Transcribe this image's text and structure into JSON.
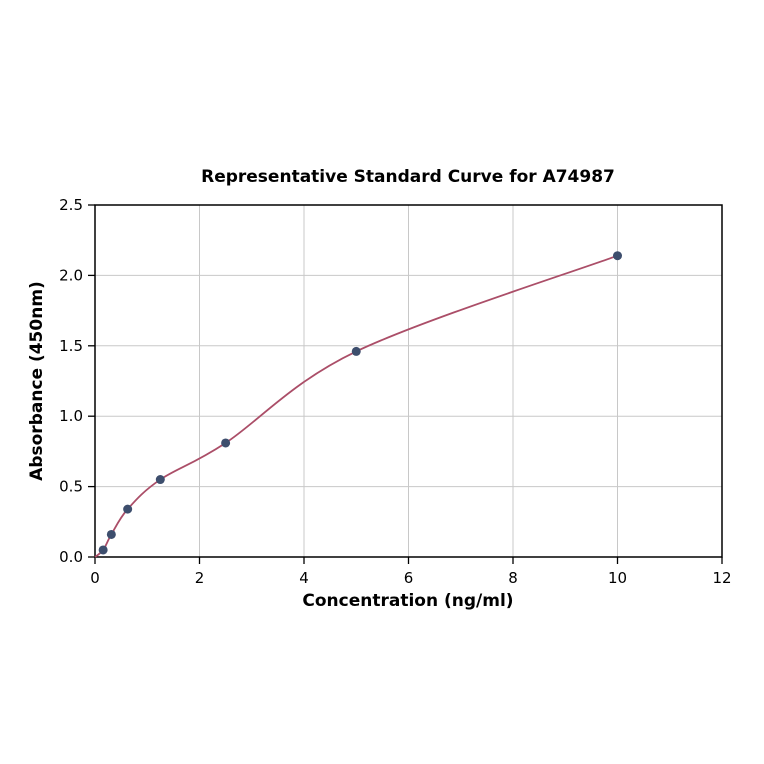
{
  "chart_data": {
    "type": "scatter",
    "title": "Representative Standard Curve for A74987",
    "xlabel": "Concentration (ng/ml)",
    "ylabel": "Absorbance (450nm)",
    "xlim": [
      0,
      12
    ],
    "ylim": [
      0,
      2.5
    ],
    "xticks": [
      0,
      2,
      4,
      6,
      8,
      10,
      12
    ],
    "xtick_labels": [
      "0",
      "2",
      "4",
      "6",
      "8",
      "10",
      "12"
    ],
    "yticks": [
      0,
      0.5,
      1.0,
      1.5,
      2.0,
      2.5
    ],
    "ytick_labels": [
      "0.0",
      "0.5",
      "1.0",
      "1.5",
      "2.0",
      "2.5"
    ],
    "grid": true,
    "series": [
      {
        "name": "standard-points",
        "points": [
          {
            "x": 0.156,
            "y": 0.05
          },
          {
            "x": 0.313,
            "y": 0.16
          },
          {
            "x": 0.625,
            "y": 0.34
          },
          {
            "x": 1.25,
            "y": 0.55
          },
          {
            "x": 2.5,
            "y": 0.81
          },
          {
            "x": 5,
            "y": 1.46
          },
          {
            "x": 10,
            "y": 2.14
          }
        ]
      }
    ],
    "fit_curve": {
      "start_point": {
        "x": 0,
        "y": 0.0
      },
      "end_point": {
        "x": 10,
        "y": 2.14
      }
    },
    "colors": {
      "marker": "#3d4e6d",
      "curve": "#ab4e68",
      "grid": "#c8c8c8",
      "frame": "#000000",
      "background": "#ffffff"
    }
  }
}
